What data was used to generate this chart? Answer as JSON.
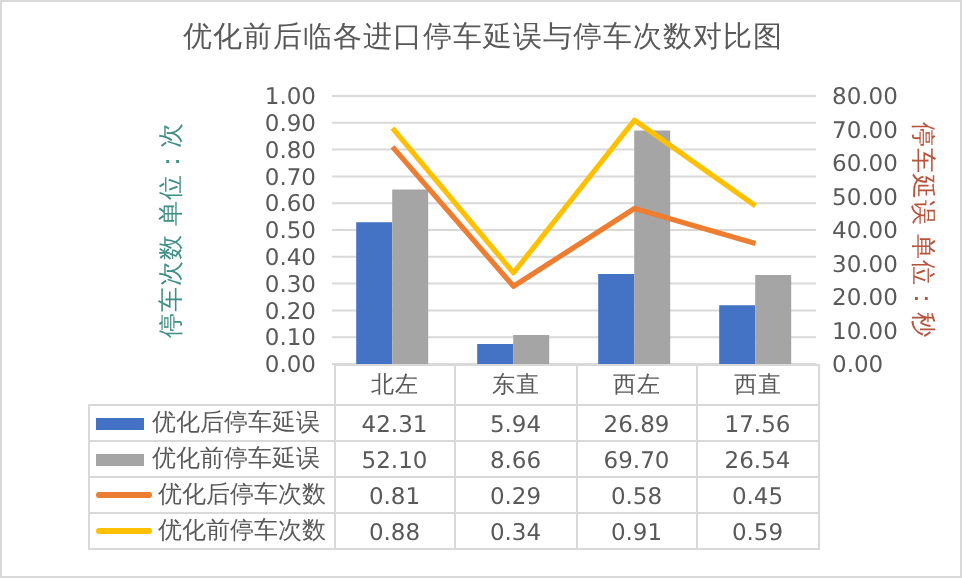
{
  "chart_data": {
    "type": "bar",
    "title": "优化前后临各进口停车延误与停车次数对比图",
    "ylabel": "停车次数 单位：次",
    "y2label": "停车延误 单位：秒",
    "categories": [
      "北左",
      "东直",
      "西左",
      "西直"
    ],
    "series": [
      {
        "name": "优化后停车延误",
        "axis": "y2",
        "color": "#4472c4",
        "values": [
          42.31,
          5.94,
          26.89,
          17.56
        ],
        "value_labels": [
          "42.31",
          "5.94",
          "26.89",
          "17.56"
        ]
      },
      {
        "name": "优化前停车延误",
        "axis": "y2",
        "color": "#a5a5a5",
        "values": [
          52.1,
          8.66,
          69.7,
          26.54
        ],
        "value_labels": [
          "52.10",
          "8.66",
          "69.70",
          "26.54"
        ]
      },
      {
        "name": "优化后停车次数",
        "type": "line",
        "color": "#ed7d31",
        "values": [
          0.81,
          0.29,
          0.58,
          0.45
        ],
        "value_labels": [
          "0.81",
          "0.29",
          "0.58",
          "0.45"
        ]
      },
      {
        "name": "优化前停车次数",
        "type": "line",
        "color": "#ffc000",
        "values": [
          0.88,
          0.34,
          0.91,
          0.59
        ],
        "value_labels": [
          "0.88",
          "0.34",
          "0.91",
          "0.59"
        ]
      }
    ],
    "ylim": [
      0,
      1
    ],
    "yticks": [
      {
        "value": 0,
        "label": "0.00"
      },
      {
        "value": 0.1,
        "label": "0.10"
      },
      {
        "value": 0.2,
        "label": "0.20"
      },
      {
        "value": 0.3,
        "label": "0.30"
      },
      {
        "value": 0.4,
        "label": "0.40"
      },
      {
        "value": 0.5,
        "label": "0.50"
      },
      {
        "value": 0.6,
        "label": "0.60"
      },
      {
        "value": 0.7,
        "label": "0.70"
      },
      {
        "value": 0.8,
        "label": "0.80"
      },
      {
        "value": 0.9,
        "label": "0.90"
      },
      {
        "value": 1,
        "label": "1.00"
      }
    ],
    "y2lim": [
      0,
      80
    ],
    "y2ticks": [
      {
        "value": 0,
        "label": "0.00"
      },
      {
        "value": 10,
        "label": "10.00"
      },
      {
        "value": 20,
        "label": "20.00"
      },
      {
        "value": 30,
        "label": "30.00"
      },
      {
        "value": 40,
        "label": "40.00"
      },
      {
        "value": 50,
        "label": "50.00"
      },
      {
        "value": 60,
        "label": "60.00"
      },
      {
        "value": 70,
        "label": "70.00"
      },
      {
        "value": 80,
        "label": "80.00"
      }
    ],
    "grid": "y",
    "legend": "bottom",
    "marker": "none",
    "line_style": "solid"
  }
}
